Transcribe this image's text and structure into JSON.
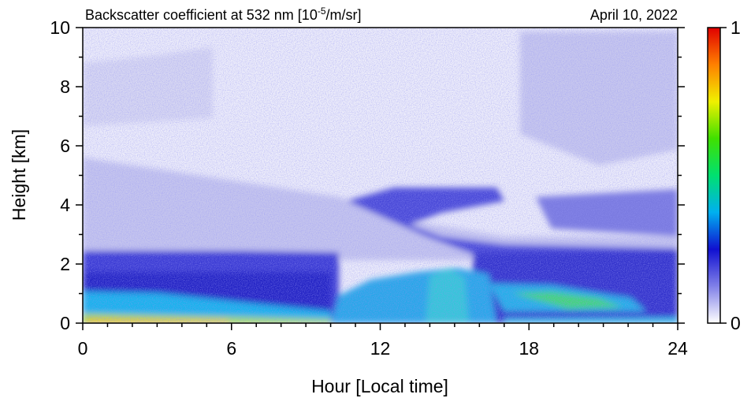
{
  "chart_data": {
    "type": "heatmap",
    "title": "Backscatter coefficient at 532 nm [10",
    "title_exponent": "-5",
    "title_suffix": "/m/sr]",
    "date": "April 10, 2022",
    "x_label": "Hour [Local time]",
    "y_label": "Height [km]",
    "xlim": [
      0,
      24
    ],
    "xticks": [
      0,
      6,
      12,
      18,
      24
    ],
    "xminorticks": [
      1,
      2,
      3,
      4,
      5,
      7,
      8,
      9,
      10,
      11,
      13,
      14,
      15,
      16,
      17,
      19,
      20,
      21,
      22,
      23
    ],
    "ylim": [
      0,
      10
    ],
    "yticks": [
      0,
      2,
      4,
      6,
      8,
      10
    ],
    "yminorticks": [
      1,
      3,
      5,
      7,
      9
    ],
    "colorbar": {
      "lim": [
        0,
        1
      ],
      "ticks": [
        0,
        1
      ],
      "colors": [
        "#ffffff",
        "#8080e8",
        "#1010d0",
        "#00b0f0",
        "#00e070",
        "#40e000",
        "#f0f000",
        "#ff8000",
        "#e00000"
      ]
    }
  }
}
